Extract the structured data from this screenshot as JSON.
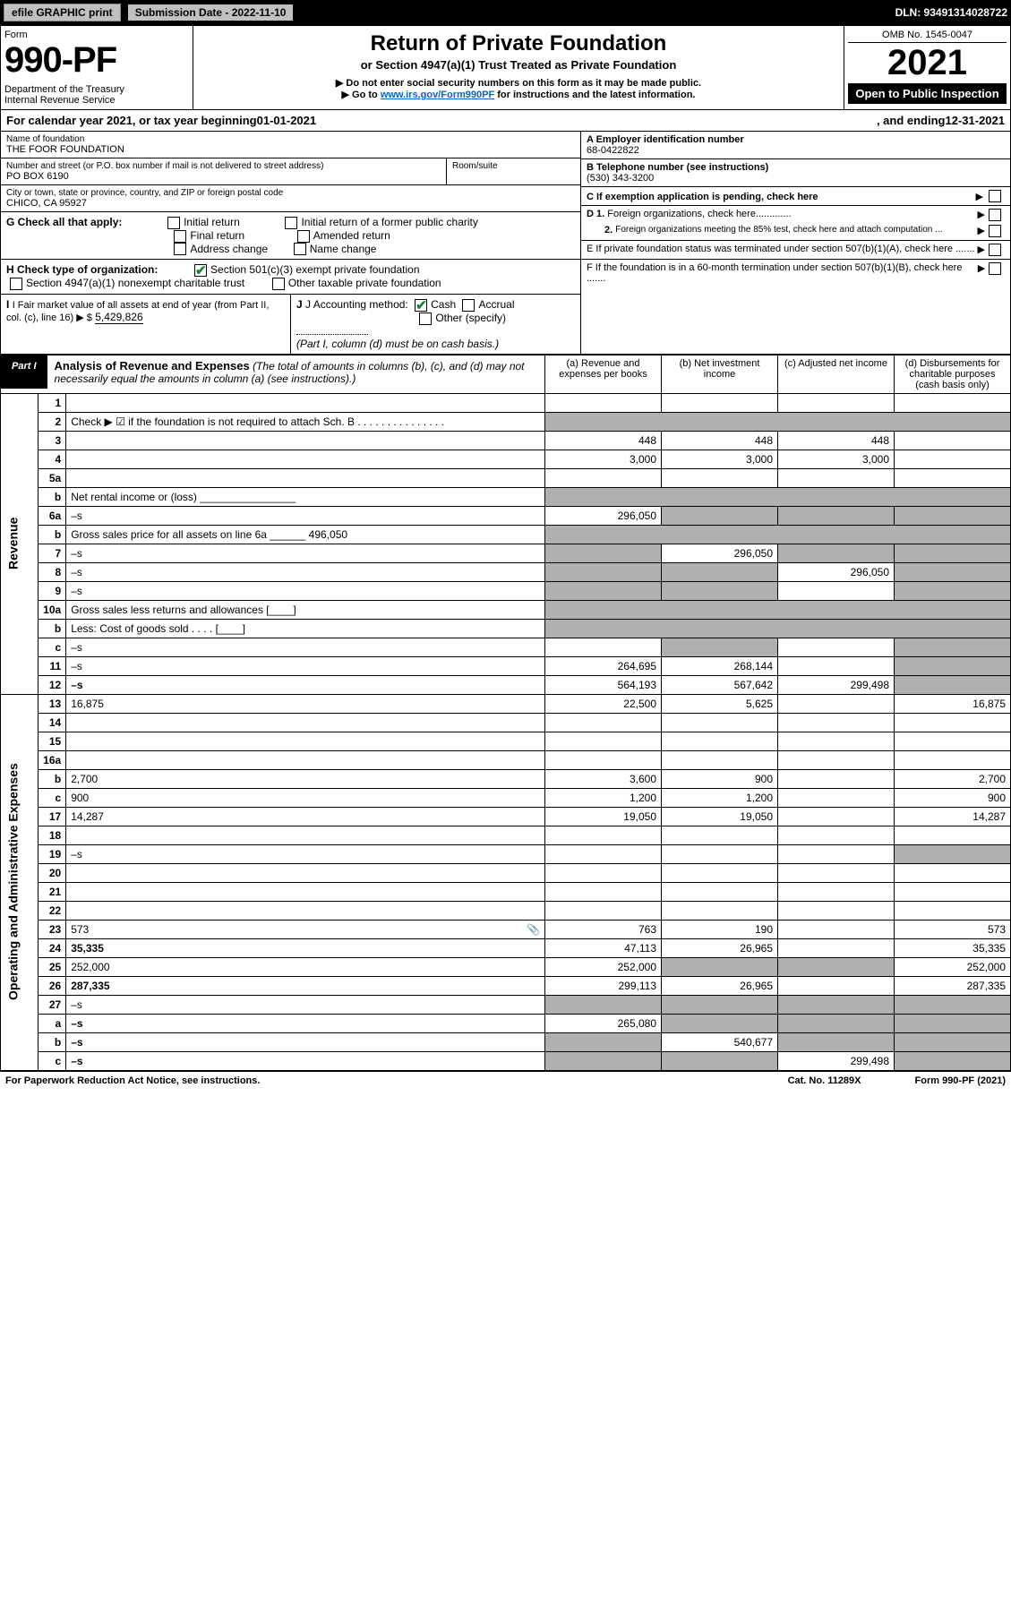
{
  "topbar": {
    "efile": "efile GRAPHIC print",
    "sub_label": "Submission Date - 2022-11-10",
    "dln": "DLN: 93491314028722"
  },
  "header": {
    "form_label": "Form",
    "form_no": "990-PF",
    "dept": "Department of the Treasury\nInternal Revenue Service",
    "title": "Return of Private Foundation",
    "subtitle": "or Section 4947(a)(1) Trust Treated as Private Foundation",
    "note1": "▶ Do not enter social security numbers on this form as it may be made public.",
    "note2_pre": "▶ Go to ",
    "note2_link": "www.irs.gov/Form990PF",
    "note2_post": " for instructions and the latest information.",
    "omb": "OMB No. 1545-0047",
    "year": "2021",
    "open": "Open to Public Inspection"
  },
  "cal_year": {
    "pre": "For calendar year 2021, or tax year beginning ",
    "begin": "01-01-2021",
    "mid": " , and ending ",
    "end": "12-31-2021"
  },
  "foundation": {
    "name_lbl": "Name of foundation",
    "name": "THE FOOR FOUNDATION",
    "addr_lbl": "Number and street (or P.O. box number if mail is not delivered to street address)",
    "addr": "PO BOX 6190",
    "room_lbl": "Room/suite",
    "city_lbl": "City or town, state or province, country, and ZIP or foreign postal code",
    "city": "CHICO, CA  95927"
  },
  "ids": {
    "a_lbl": "A Employer identification number",
    "a": "68-0422822",
    "b_lbl": "B Telephone number (see instructions)",
    "b": "(530) 343-3200",
    "c_lbl": "C If exemption application is pending, check here",
    "d1": "D 1. Foreign organizations, check here.............",
    "d2": "2. Foreign organizations meeting the 85% test, check here and attach computation ...",
    "e": "E  If private foundation status was terminated under section 507(b)(1)(A), check here .......",
    "f": "F  If the foundation is in a 60-month termination under section 507(b)(1)(B), check here .......",
    "arrow": "▶"
  },
  "checks": {
    "g_lbl": "G Check all that apply:",
    "g_opts": [
      "Initial return",
      "Final return",
      "Address change",
      "Initial return of a former public charity",
      "Amended return",
      "Name change"
    ],
    "h_lbl": "H Check type of organization:",
    "h1": "Section 501(c)(3) exempt private foundation",
    "h2": "Section 4947(a)(1) nonexempt charitable trust",
    "h3": "Other taxable private foundation",
    "i_lbl": "I Fair market value of all assets at end of year (from Part II, col. (c), line 16) ▶ $",
    "i_val": "5,429,826",
    "j_lbl": "J Accounting method:",
    "j_opts": [
      "Cash",
      "Accrual",
      "Other (specify)"
    ],
    "j_note": "(Part I, column (d) must be on cash basis.)"
  },
  "part1": {
    "tag": "Part I",
    "title": "Analysis of Revenue and Expenses",
    "title_note": "(The total of amounts in columns (b), (c), and (d) may not necessarily equal the amounts in column (a) (see instructions).)",
    "col_a": "(a) Revenue and expenses per books",
    "col_b": "(b) Net investment income",
    "col_c": "(c) Adjusted net income",
    "col_d": "(d) Disbursements for charitable purposes (cash basis only)"
  },
  "side_labels": {
    "revenue": "Revenue",
    "expenses": "Operating and Administrative Expenses"
  },
  "rows": [
    {
      "n": "1",
      "d": "",
      "a": "",
      "b": "",
      "c": ""
    },
    {
      "n": "2",
      "d": "Check ▶ ☑ if the foundation is not required to attach Sch. B   .   .   .   .   .   .   .   .   .   .   .   .   .   .   .",
      "allshade": true
    },
    {
      "n": "3",
      "d": "",
      "a": "448",
      "b": "448",
      "c": "448"
    },
    {
      "n": "4",
      "d": "",
      "a": "3,000",
      "b": "3,000",
      "c": "3,000"
    },
    {
      "n": "5a",
      "d": "",
      "a": "",
      "b": "",
      "c": ""
    },
    {
      "n": "b",
      "d": "Net rental income or (loss)  ________________",
      "allshade": true
    },
    {
      "n": "6a",
      "d": "–s",
      "a": "296,050",
      "b": "–s",
      "c": "–s"
    },
    {
      "n": "b",
      "d": "Gross sales price for all assets on line 6a ______ 496,050",
      "allshade": true
    },
    {
      "n": "7",
      "d": "–s",
      "a": "–s",
      "b": "296,050",
      "c": "–s"
    },
    {
      "n": "8",
      "d": "–s",
      "a": "–s",
      "b": "–s",
      "c": "296,050"
    },
    {
      "n": "9",
      "d": "–s",
      "a": "–s",
      "b": "–s",
      "c": ""
    },
    {
      "n": "10a",
      "d": "Gross sales less returns and allowances   [____]",
      "allshade": true
    },
    {
      "n": "b",
      "d": "Less: Cost of goods sold   .   .   .   .   [____]",
      "allshade": true
    },
    {
      "n": "c",
      "d": "–s",
      "a": "",
      "b": "–s",
      "c": ""
    },
    {
      "n": "11",
      "d": "–s",
      "a": "264,695",
      "b": "268,144",
      "c": ""
    },
    {
      "n": "12",
      "d": "–s",
      "a": "564,193",
      "b": "567,642",
      "c": "299,498",
      "bold": true
    },
    {
      "n": "13",
      "d": "16,875",
      "a": "22,500",
      "b": "5,625",
      "c": ""
    },
    {
      "n": "14",
      "d": "",
      "a": "",
      "b": "",
      "c": ""
    },
    {
      "n": "15",
      "d": "",
      "a": "",
      "b": "",
      "c": ""
    },
    {
      "n": "16a",
      "d": "",
      "a": "",
      "b": "",
      "c": ""
    },
    {
      "n": "b",
      "d": "2,700",
      "a": "3,600",
      "b": "900",
      "c": ""
    },
    {
      "n": "c",
      "d": "900",
      "a": "1,200",
      "b": "1,200",
      "c": ""
    },
    {
      "n": "17",
      "d": "14,287",
      "a": "19,050",
      "b": "19,050",
      "c": ""
    },
    {
      "n": "18",
      "d": "",
      "a": "",
      "b": "",
      "c": ""
    },
    {
      "n": "19",
      "d": "–s",
      "a": "",
      "b": "",
      "c": ""
    },
    {
      "n": "20",
      "d": "",
      "a": "",
      "b": "",
      "c": ""
    },
    {
      "n": "21",
      "d": "",
      "a": "",
      "b": "",
      "c": ""
    },
    {
      "n": "22",
      "d": "",
      "a": "",
      "b": "",
      "c": ""
    },
    {
      "n": "23",
      "d": "573",
      "a": "763",
      "b": "190",
      "c": "",
      "icon": true
    },
    {
      "n": "24",
      "d": "35,335",
      "a": "47,113",
      "b": "26,965",
      "c": "",
      "bold": true
    },
    {
      "n": "25",
      "d": "252,000",
      "a": "252,000",
      "b": "–s",
      "c": "–s"
    },
    {
      "n": "26",
      "d": "287,335",
      "a": "299,113",
      "b": "26,965",
      "c": "",
      "bold": true
    },
    {
      "n": "27",
      "d": "–s",
      "a": "–s",
      "b": "–s",
      "c": "–s"
    },
    {
      "n": "a",
      "d": "–s",
      "a": "265,080",
      "b": "–s",
      "c": "–s",
      "bold": true
    },
    {
      "n": "b",
      "d": "–s",
      "a": "–s",
      "b": "540,677",
      "c": "–s",
      "bold": true
    },
    {
      "n": "c",
      "d": "–s",
      "a": "–s",
      "b": "–s",
      "c": "299,498",
      "bold": true
    }
  ],
  "footer": {
    "left": "For Paperwork Reduction Act Notice, see instructions.",
    "cat": "Cat. No. 11289X",
    "form": "Form 990-PF (2021)"
  },
  "colors": {
    "shade": "#b0b0b0",
    "link": "#0066cc",
    "check": "#1a7f37"
  }
}
